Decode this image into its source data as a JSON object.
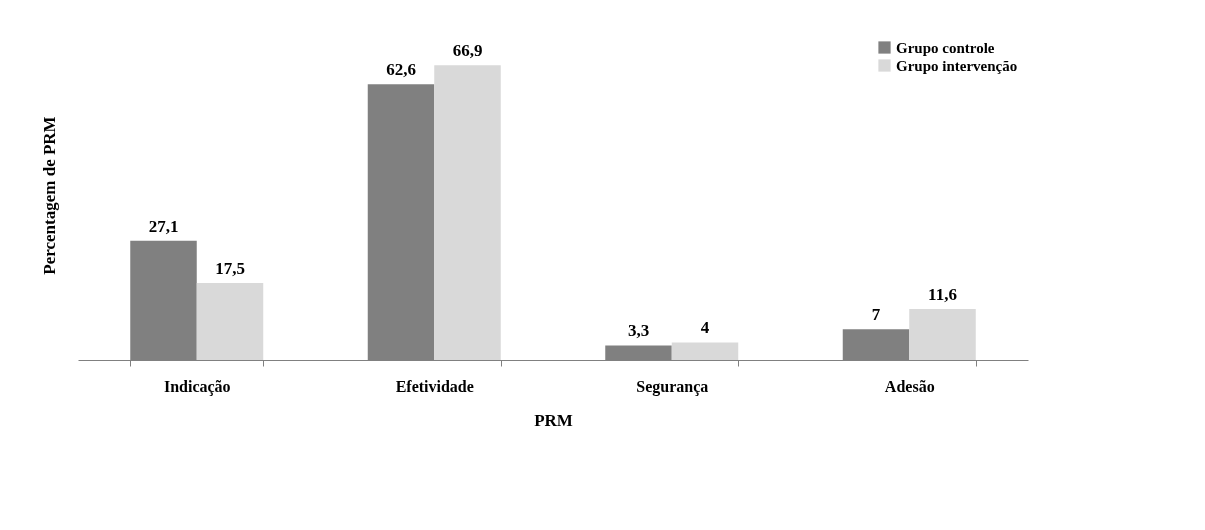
{
  "chart_data": {
    "type": "bar",
    "xlabel": "PRM",
    "ylabel": "Percentagem de PRM",
    "categories": [
      "Indicação",
      "Efetividade",
      "Segurança",
      "Adesão"
    ],
    "series": [
      {
        "name": "Grupo controle",
        "color": "#808080",
        "values": [
          27.1,
          62.6,
          3.3,
          7
        ],
        "value_labels": [
          "27,1",
          "62,6",
          "3,3",
          "7"
        ]
      },
      {
        "name": "Grupo intervenção",
        "color": "#d9d9d9",
        "values": [
          17.5,
          66.9,
          4,
          11.6
        ],
        "value_labels": [
          "17,5",
          "66,9",
          "4",
          "11,6"
        ]
      }
    ],
    "legend": "top right",
    "grid": false
  }
}
